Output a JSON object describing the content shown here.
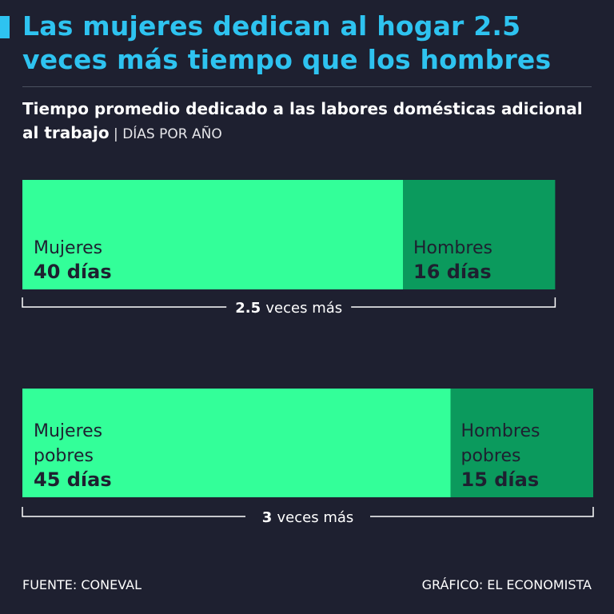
{
  "header": {
    "title": "Las mujeres dedican al hogar 2.5 veces más tiempo que los hombres",
    "subtitle_bold": "Tiempo promedio dedicado a las labores domésticas adicional al trabajo",
    "subtitle_sep": " | ",
    "subtitle_unit": "DÍAS POR AÑO"
  },
  "colors": {
    "background": "#1e2030",
    "title": "#2ec3f0",
    "women": "#33ff99",
    "men": "#0b9a5d",
    "bar_text": "#1e2030"
  },
  "chart_data": {
    "type": "bar",
    "orientation": "horizontal-stacked",
    "unit": "días",
    "groups": [
      {
        "women_label": [
          "Mujeres"
        ],
        "women_value": 40,
        "women_value_label": "40 días",
        "men_label": [
          "Hombres"
        ],
        "men_value": 16,
        "men_value_label": "16 días",
        "ratio_number": "2.5",
        "ratio_text": "veces más"
      },
      {
        "women_label": [
          "Mujeres",
          "pobres"
        ],
        "women_value": 45,
        "women_value_label": "45 días",
        "men_label": [
          "Hombres",
          "pobres"
        ],
        "men_value": 15,
        "men_value_label": "15 días",
        "ratio_number": "3",
        "ratio_text": "veces más"
      }
    ]
  },
  "footer": {
    "source": "FUENTE: CONEVAL",
    "credit": "GRÁFICO: EL ECONOMISTA"
  }
}
